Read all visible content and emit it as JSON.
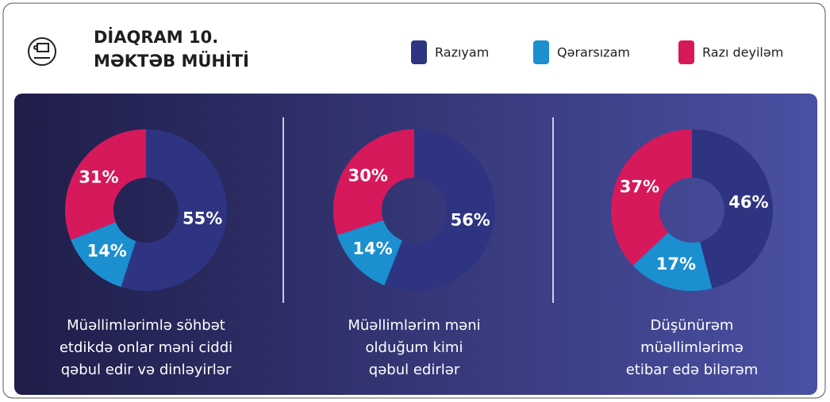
{
  "header": {
    "title_lines": [
      "DİAQRAM 10.",
      "MƏKTƏB MÜHİTİ"
    ]
  },
  "chart_data": [
    {
      "type": "pie",
      "donut": true,
      "title": [
        "Müəllimlərimlə söhbət",
        "etdikdə onlar məni ciddi",
        "qəbul edir və dinləyirlər"
      ],
      "categories": [
        "Razıyam",
        "Qərarsızam",
        "Razı deyiləm"
      ],
      "values": [
        55,
        14,
        31
      ],
      "value_labels": [
        "55%",
        "14%",
        "31%"
      ],
      "colors": [
        "#2e3481",
        "#1b8fd0",
        "#d6195b"
      ]
    },
    {
      "type": "pie",
      "donut": true,
      "title": [
        "Müəllimlərim məni",
        "olduğum kimi",
        "qəbul edirlər"
      ],
      "categories": [
        "Razıyam",
        "Qərarsızam",
        "Razı deyiləm"
      ],
      "values": [
        56,
        14,
        30
      ],
      "value_labels": [
        "56%",
        "14%",
        "30%"
      ],
      "colors": [
        "#2e3481",
        "#1b8fd0",
        "#d6195b"
      ]
    },
    {
      "type": "pie",
      "donut": true,
      "title": [
        "Düşünürəm",
        "müəllimlərimə",
        "etibar edə bilərəm"
      ],
      "categories": [
        "Razıyam",
        "Qərarsızam",
        "Razı deyiləm"
      ],
      "values": [
        46,
        17,
        37
      ],
      "value_labels": [
        "46%",
        "17%",
        "37%"
      ],
      "colors": [
        "#2e3481",
        "#1b8fd0",
        "#d6195b"
      ]
    }
  ]
}
